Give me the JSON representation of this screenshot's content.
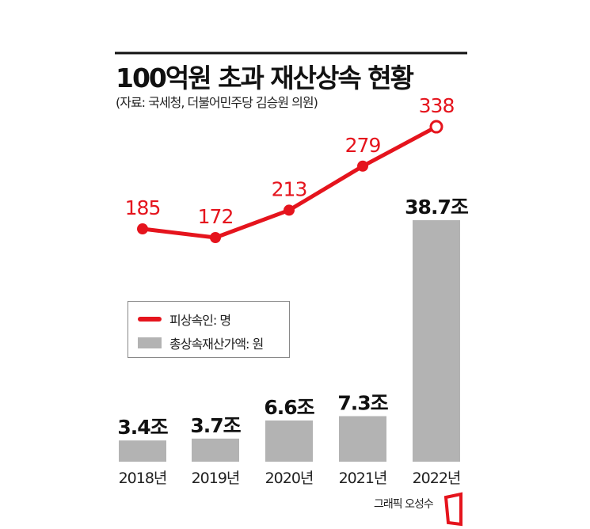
{
  "header": {
    "title": "100억원 초과 재산상속 현황",
    "source": "(자료: 국세청, 더불어민주당 김승원 의원)"
  },
  "legend": {
    "line_label": "피상속인: 명",
    "bar_label": "총상속재산가액: 원"
  },
  "credit": "그래픽 오성수",
  "colors": {
    "line": "#e5141d",
    "bar": "#b3b3b3",
    "text": "#111111"
  },
  "chart_data": {
    "type": "bar+line",
    "title": "100억원 초과 재산상속 현황",
    "categories": [
      "2018년",
      "2019년",
      "2020년",
      "2021년",
      "2022년"
    ],
    "series": [
      {
        "name": "총상속재산가액: 원",
        "type": "bar",
        "unit": "조",
        "values": [
          3.4,
          3.7,
          6.6,
          7.3,
          38.7
        ],
        "labels": [
          "3.4조",
          "3.7조",
          "6.6조",
          "7.3조",
          "38.7조"
        ]
      },
      {
        "name": "피상속인: 명",
        "type": "line",
        "unit": "명",
        "values": [
          185,
          172,
          213,
          279,
          338
        ],
        "labels": [
          "185",
          "172",
          "213",
          "279",
          "338"
        ]
      }
    ],
    "legend_position": "middle-left",
    "grid": false
  }
}
